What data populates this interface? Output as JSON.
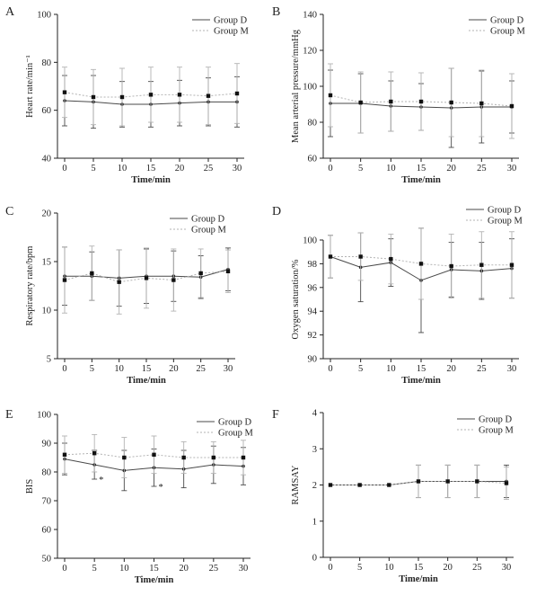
{
  "style": {
    "colors": {
      "group_d": "#4a4a4a",
      "group_m": "#b3b3b3",
      "axis": "#222222"
    }
  },
  "chart_data": [
    {
      "panel": "A",
      "type": "line",
      "ylabel": "Heart rate/min⁻¹",
      "xlabel": "Time/min",
      "x": [
        0,
        5,
        10,
        15,
        20,
        25,
        30
      ],
      "ylim": [
        40,
        100
      ],
      "yticks": [
        40,
        60,
        80,
        100
      ],
      "series": [
        {
          "name": "Group D",
          "values": [
            64,
            63.5,
            62.5,
            62.5,
            63,
            63.5,
            63.5
          ],
          "err": [
            10.5,
            11,
            9.5,
            9.5,
            9.5,
            10,
            10.5
          ]
        },
        {
          "name": "Group M",
          "values": [
            67.5,
            65.5,
            65.5,
            66.5,
            66.5,
            66,
            67
          ],
          "err": [
            10.5,
            11.5,
            12,
            11.5,
            11.5,
            12,
            12.5
          ]
        }
      ]
    },
    {
      "panel": "B",
      "type": "line",
      "ylabel": "Mean arterial pressure/mmHg",
      "xlabel": "Time/min",
      "x": [
        0,
        5,
        10,
        15,
        20,
        25,
        30
      ],
      "ylim": [
        60,
        140
      ],
      "yticks": [
        60,
        80,
        100,
        120,
        140
      ],
      "series": [
        {
          "name": "Group D",
          "values": [
            90.5,
            90.5,
            89,
            88.5,
            88,
            88.5,
            88.5
          ],
          "err": [
            18.5,
            16.5,
            14,
            13,
            22,
            20,
            14.5
          ]
        },
        {
          "name": "Group M",
          "values": [
            95,
            91,
            91.5,
            91.5,
            91,
            90.5,
            89
          ],
          "err": [
            17.5,
            17,
            16.5,
            16,
            19,
            18.5,
            18
          ]
        }
      ]
    },
    {
      "panel": "C",
      "type": "line",
      "ylabel": "Respiratory rate/bpm",
      "xlabel": "Time/min",
      "x": [
        0,
        5,
        10,
        15,
        20,
        25,
        30
      ],
      "ylim": [
        5,
        20
      ],
      "yticks": [
        5,
        10,
        15,
        20
      ],
      "series": [
        {
          "name": "Group D",
          "values": [
            13.5,
            13.5,
            13.3,
            13.5,
            13.5,
            13.4,
            14.2
          ],
          "err": [
            3,
            2.5,
            2.9,
            2.8,
            2.6,
            2.2,
            2.2
          ]
        },
        {
          "name": "Group M",
          "values": [
            13.1,
            13.8,
            12.9,
            13.3,
            13.1,
            13.8,
            14
          ],
          "err": [
            3.4,
            2.8,
            3.3,
            3.1,
            3.2,
            2.5,
            2.2
          ]
        }
      ]
    },
    {
      "panel": "D",
      "type": "line",
      "ylabel": "Oxygen saturation/%",
      "xlabel": "Time/min",
      "x": [
        0,
        5,
        10,
        15,
        20,
        25,
        30
      ],
      "ylim": [
        90,
        100
      ],
      "yticks": [
        90,
        92,
        94,
        96,
        98,
        100
      ],
      "series": [
        {
          "name": "Group D",
          "values": [
            98.6,
            97.7,
            98.1,
            96.6,
            97.5,
            97.4,
            97.6
          ],
          "err": [
            1.8,
            2.9,
            2,
            4.4,
            2.3,
            2.4,
            2.5
          ]
        },
        {
          "name": "Group M",
          "values": [
            98.6,
            98.6,
            98.4,
            98,
            97.8,
            97.9,
            97.9
          ],
          "err": [
            1.8,
            2,
            2.1,
            3,
            2.7,
            2.8,
            2.8
          ]
        }
      ]
    },
    {
      "panel": "E",
      "type": "line",
      "ylabel": "BIS",
      "xlabel": "Time/min",
      "x": [
        0,
        5,
        10,
        15,
        20,
        25,
        30
      ],
      "ylim": [
        50,
        100
      ],
      "yticks": [
        50,
        60,
        70,
        80,
        90,
        100
      ],
      "annotations": [
        "*",
        "*"
      ],
      "series": [
        {
          "name": "Group D",
          "values": [
            84.5,
            82.5,
            80.5,
            81.5,
            81,
            82.5,
            82
          ],
          "err": [
            5.5,
            5,
            7,
            6.5,
            6.5,
            6.5,
            6.5
          ]
        },
        {
          "name": "Group M",
          "values": [
            86,
            86.5,
            85,
            86,
            85,
            85,
            85
          ],
          "err": [
            6.5,
            6.5,
            7,
            6.5,
            5.5,
            5.5,
            6
          ]
        }
      ]
    },
    {
      "panel": "F",
      "type": "line",
      "ylabel": "RAMSAY",
      "xlabel": "Time/min",
      "x": [
        0,
        5,
        10,
        15,
        20,
        25,
        30
      ],
      "ylim": [
        0,
        4
      ],
      "yticks": [
        0,
        1,
        2,
        3,
        4
      ],
      "series": [
        {
          "name": "Group D",
          "values": [
            2,
            2,
            2,
            2.1,
            2.1,
            2.1,
            2.1
          ],
          "err": [
            0,
            0,
            0,
            0.45,
            0.45,
            0.45,
            0.45
          ]
        },
        {
          "name": "Group M",
          "values": [
            2,
            2,
            2,
            2.1,
            2.1,
            2.1,
            2.05
          ],
          "err": [
            0,
            0,
            0,
            0.45,
            0.45,
            0.45,
            0.45
          ]
        }
      ]
    }
  ]
}
